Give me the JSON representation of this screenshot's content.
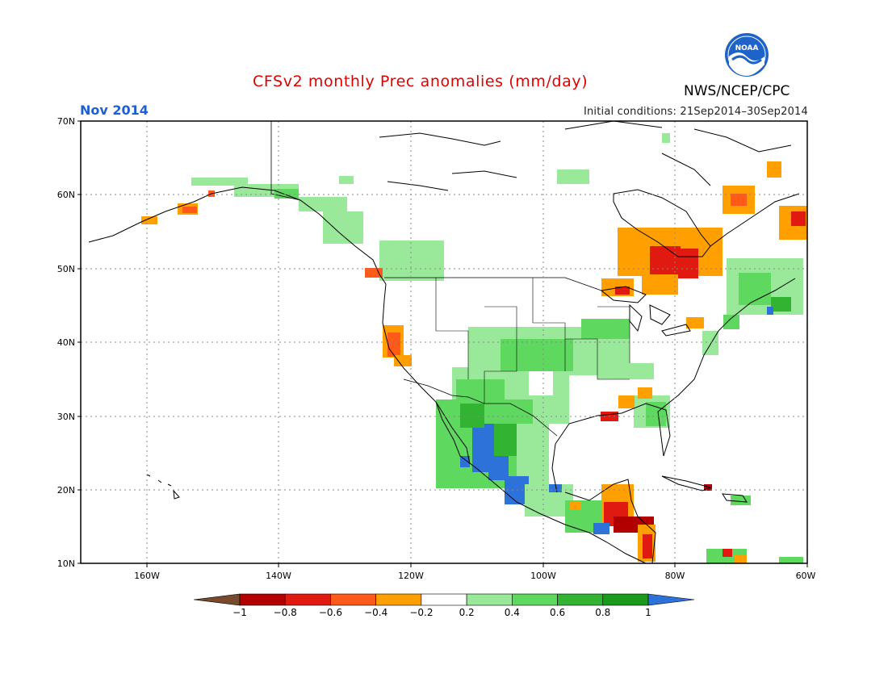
{
  "title": "CFSv2 monthly Prec anomalies (mm/day)",
  "month_label": "Nov 2014",
  "initial_conditions": "Initial conditions: 21Sep2014–30Sep2014",
  "agency": "NWS/NCEP/CPC",
  "logo_text": "NOAA",
  "colors": {
    "title": "#e00000",
    "month": "#1f5fd6",
    "grid": "#888888"
  },
  "y_ticks": [
    "70N",
    "60N",
    "50N",
    "40N",
    "30N",
    "20N",
    "10N"
  ],
  "x_ticks": [
    "160W",
    "140W",
    "120W",
    "100W",
    "80W",
    "60W"
  ],
  "colorbar": {
    "bins": [
      {
        "color": "#7a4a2e"
      },
      {
        "color": "#b20000"
      },
      {
        "color": "#e01a10"
      },
      {
        "color": "#ff5a1a"
      },
      {
        "color": "#ffa000"
      },
      {
        "color": "#ffffff"
      },
      {
        "color": "#9ae89a"
      },
      {
        "color": "#5fd85f"
      },
      {
        "color": "#32b432"
      },
      {
        "color": "#1a9a1a"
      },
      {
        "color": "#2c72d8"
      }
    ],
    "labels": [
      "−1",
      "−0.8",
      "−0.6",
      "−0.4",
      "−0.2",
      "0.2",
      "0.4",
      "0.6",
      "0.8",
      "1"
    ]
  }
}
